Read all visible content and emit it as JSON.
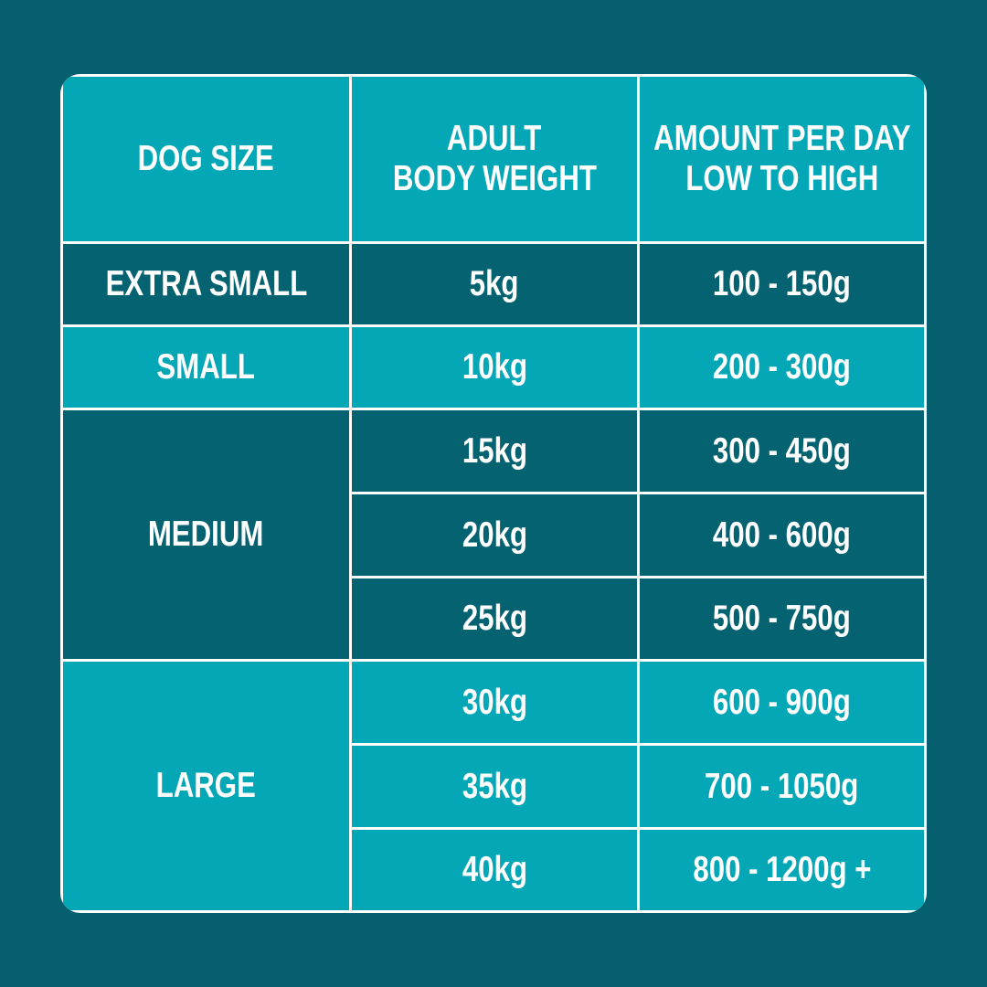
{
  "header": {
    "columns": [
      [
        "DOG SIZE"
      ],
      [
        "ADULT",
        "BODY WEIGHT"
      ],
      [
        "AMOUNT PER DAY",
        "LOW TO HIGH"
      ]
    ]
  },
  "groups": [
    {
      "size": "EXTRA SMALL",
      "rows": [
        [
          "5kg",
          "100 - 150g"
        ]
      ]
    },
    {
      "size": "SMALL",
      "rows": [
        [
          "10kg",
          "200 - 300g"
        ]
      ]
    },
    {
      "size": "MEDIUM",
      "rows": [
        [
          "15kg",
          "300 - 450g"
        ],
        [
          "20kg",
          "400 - 600g"
        ],
        [
          "25kg",
          "500 - 750g"
        ]
      ]
    },
    {
      "size": "LARGE",
      "rows": [
        [
          "30kg",
          "600 - 900g"
        ],
        [
          "35kg",
          "700 - 1050g"
        ],
        [
          "40kg",
          "800 - 1200g +"
        ]
      ]
    }
  ]
}
